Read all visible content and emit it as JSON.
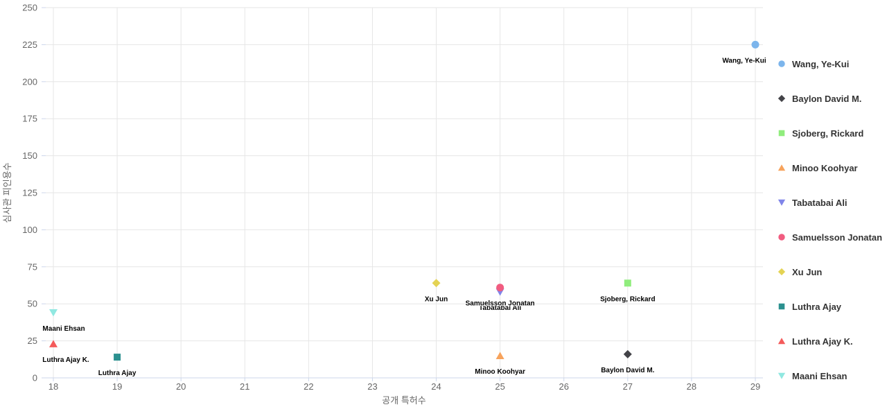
{
  "chart_data": {
    "type": "scatter",
    "title": "",
    "xlabel": "공개 특허수",
    "ylabel": "심사관 피인용수",
    "xlim": [
      18,
      29
    ],
    "ylim": [
      0,
      250
    ],
    "xticks": [
      18,
      19,
      20,
      21,
      22,
      23,
      24,
      25,
      26,
      27,
      28,
      29
    ],
    "yticks": [
      0,
      25,
      50,
      75,
      100,
      125,
      150,
      175,
      200,
      225,
      250
    ],
    "grid": true,
    "legend_position": "right-vertical",
    "series": [
      {
        "name": "Wang, Ye-Kui",
        "marker": "circle",
        "color": "#7cb5ec",
        "x": 29,
        "y": 225,
        "label_dx": -16
      },
      {
        "name": "Baylon David M.",
        "marker": "diamond",
        "color": "#434348",
        "x": 27,
        "y": 16
      },
      {
        "name": "Sjoberg, Rickard",
        "marker": "square",
        "color": "#90ed7d",
        "x": 27,
        "y": 64
      },
      {
        "name": "Minoo Koohyar",
        "marker": "triangle",
        "color": "#f7a35c",
        "x": 25,
        "y": 15
      },
      {
        "name": "Tabatabai Ali",
        "marker": "triangle-down",
        "color": "#8085e9",
        "x": 25,
        "y": 58
      },
      {
        "name": "Samuelsson Jonatan",
        "marker": "circle",
        "color": "#f15c80",
        "x": 25,
        "y": 61
      },
      {
        "name": "Xu Jun",
        "marker": "diamond",
        "color": "#e4d354",
        "x": 24,
        "y": 64
      },
      {
        "name": "Luthra Ajay",
        "marker": "square",
        "color": "#2b908f",
        "x": 19,
        "y": 14
      },
      {
        "name": "Luthra Ajay K.",
        "marker": "triangle",
        "color": "#f45b5b",
        "x": 18,
        "y": 23,
        "label_dx": 18
      },
      {
        "name": "Maani Ehsan",
        "marker": "triangle-down",
        "color": "#91e8e1",
        "x": 18,
        "y": 44,
        "label_dx": 15
      }
    ]
  },
  "colors": {
    "background": "#ffffff",
    "grid": "#e6e6e6",
    "axis_line": "#ccd6eb",
    "tick_mark": "#ccd6eb",
    "tick_label": "#666666",
    "axis_title": "#666666",
    "data_label": "#000000",
    "legend_text": "#333333"
  }
}
